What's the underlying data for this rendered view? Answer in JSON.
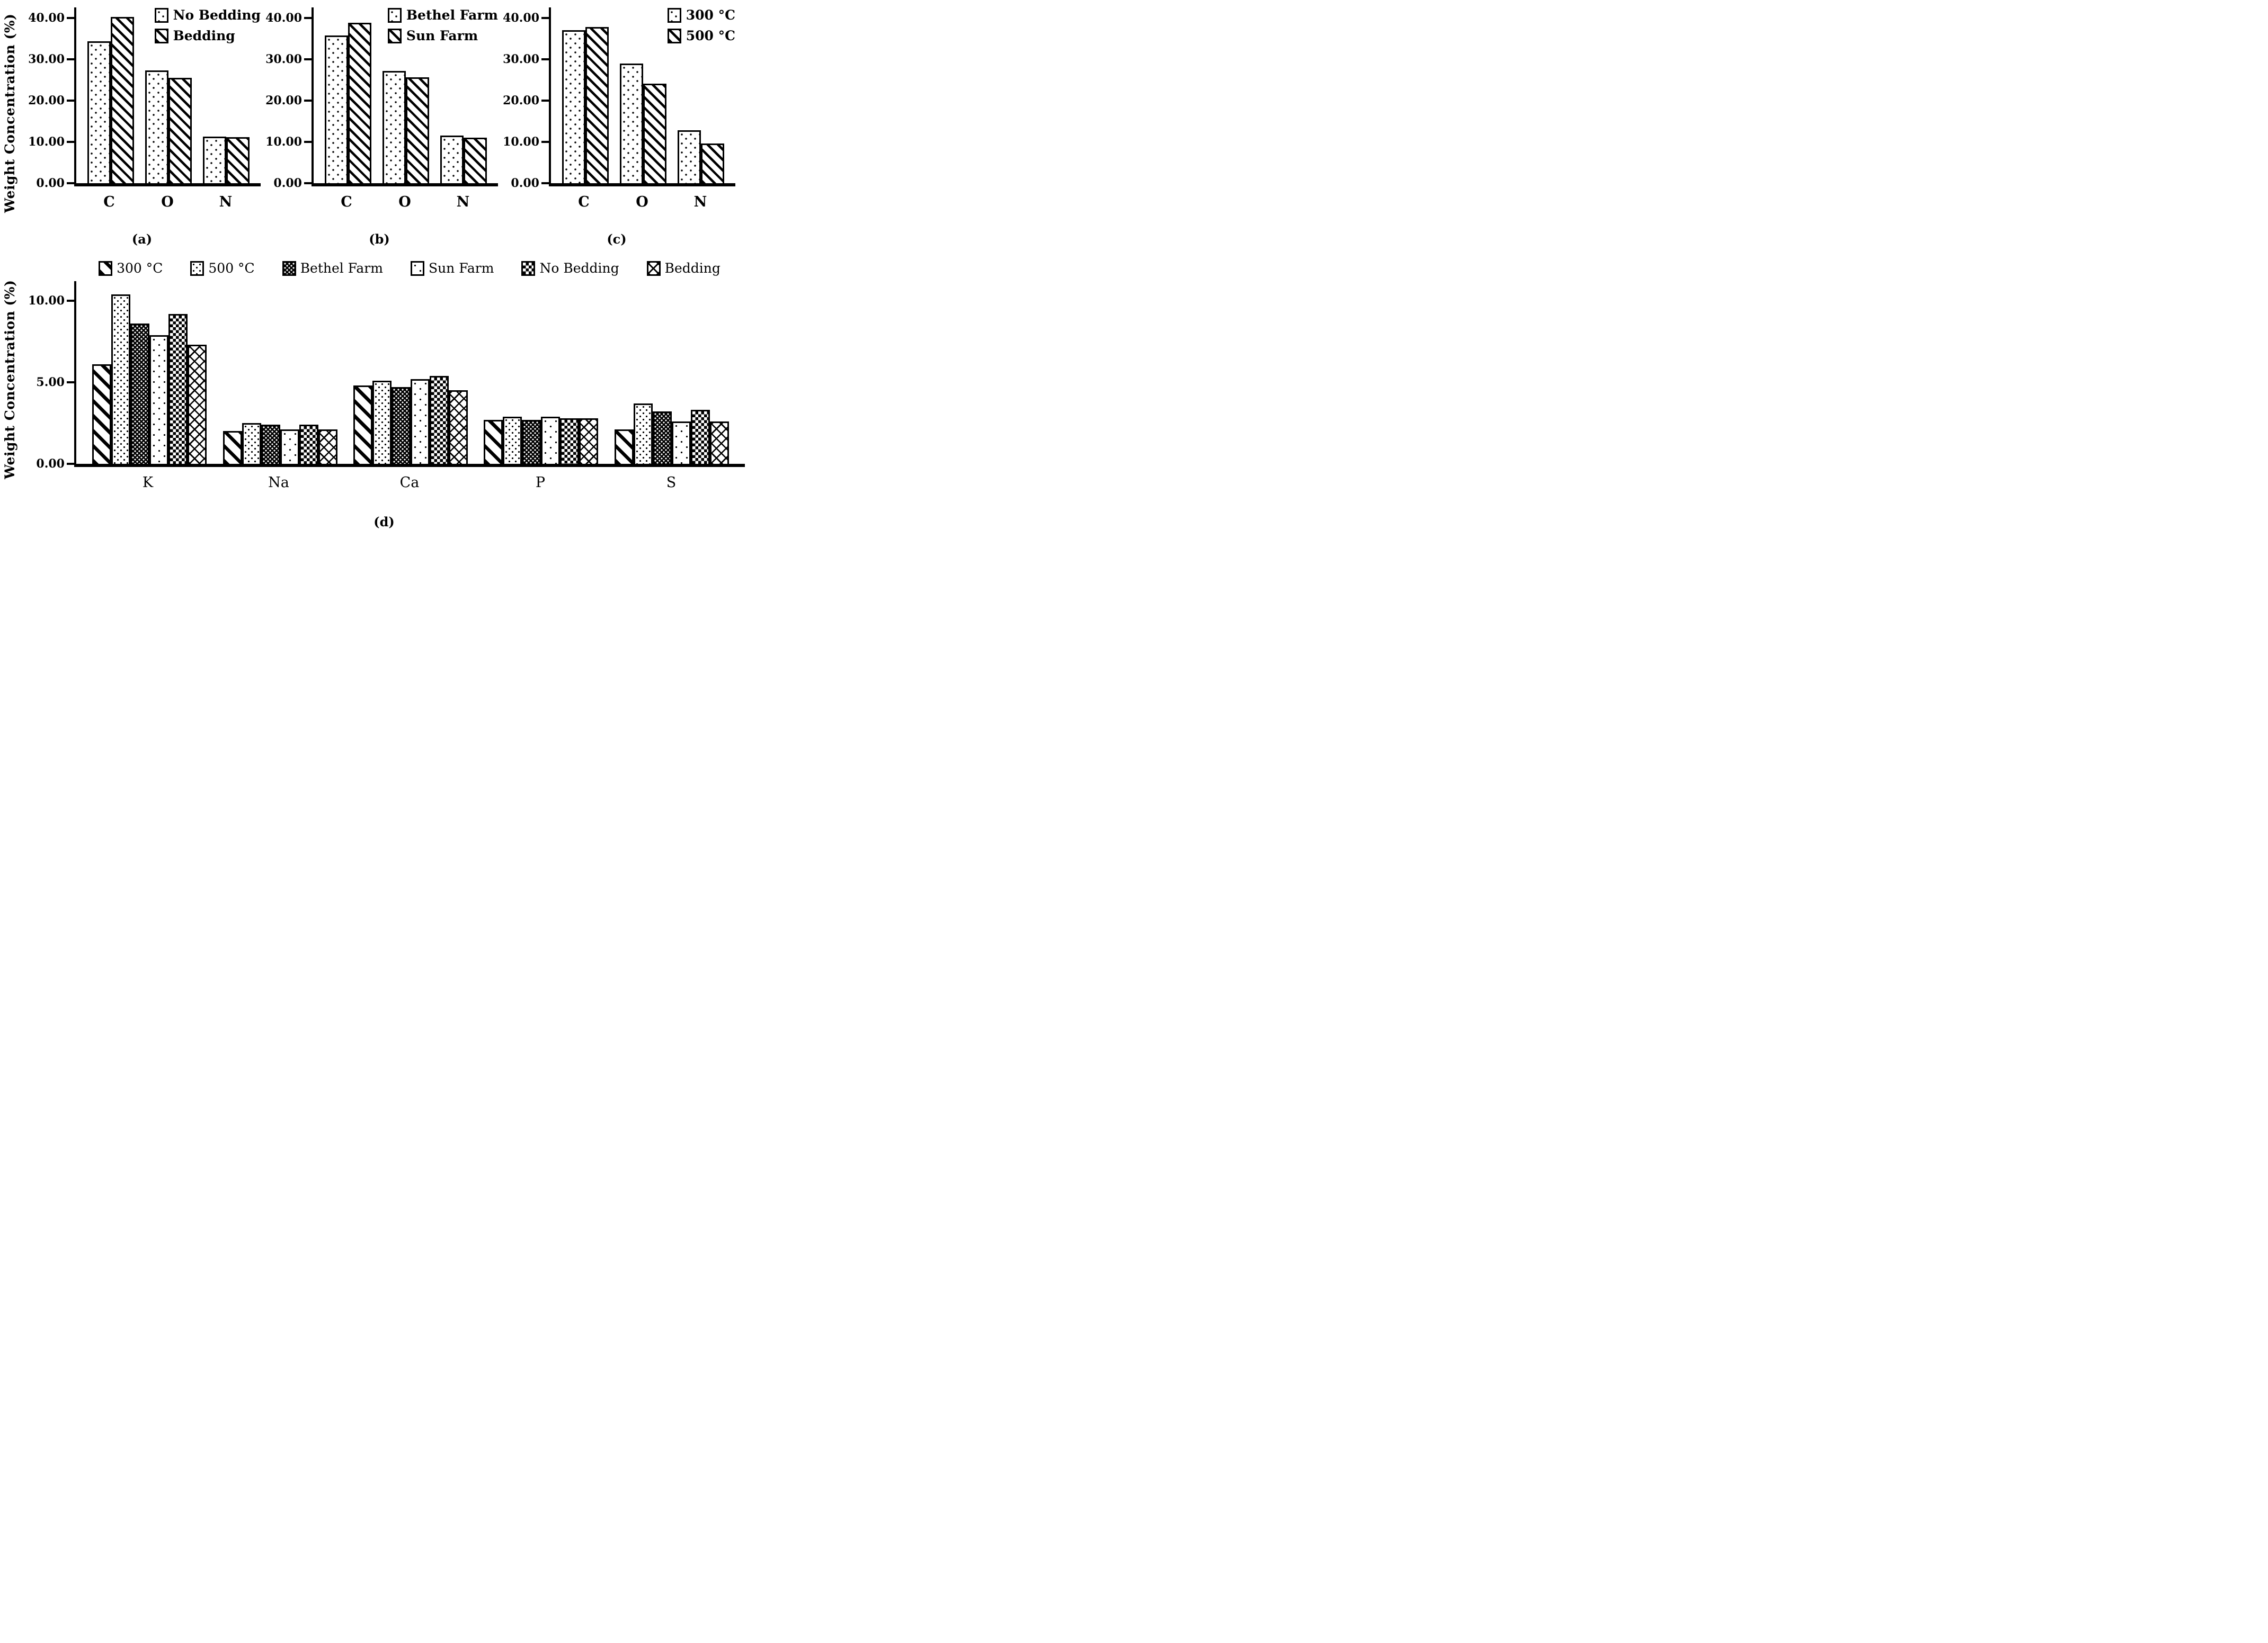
{
  "figure": {
    "y_axis_label": "Weight Concentration (%)"
  },
  "chart_data": [
    {
      "id": "a",
      "type": "bar",
      "caption": "(a)",
      "ylabel": "Weight Concentration (%)",
      "categories": [
        "C",
        "O",
        "N"
      ],
      "series": [
        {
          "name": "No Bedding",
          "pattern": "dots",
          "values": [
            34.3,
            27.3,
            11.3
          ]
        },
        {
          "name": "Bedding",
          "pattern": "diag",
          "values": [
            40.2,
            25.5,
            11.2
          ]
        }
      ],
      "ylim": [
        0,
        42.5
      ],
      "ytick_values": [
        0,
        10,
        20,
        30,
        40
      ],
      "ytick_labels": [
        "0.00",
        "10.00",
        "20.00",
        "30.00",
        "40.00"
      ],
      "legend_position": "top-right",
      "grid": "off"
    },
    {
      "id": "b",
      "type": "bar",
      "caption": "(b)",
      "ylabel": "Weight Concentration (%)",
      "categories": [
        "C",
        "O",
        "N"
      ],
      "series": [
        {
          "name": "Bethel Farm",
          "pattern": "dots",
          "values": [
            35.7,
            27.2,
            11.5
          ]
        },
        {
          "name": "Sun Farm",
          "pattern": "diag",
          "values": [
            38.8,
            25.6,
            11.0
          ]
        }
      ],
      "ylim": [
        0,
        42.5
      ],
      "ytick_values": [
        0,
        10,
        20,
        30,
        40
      ],
      "ytick_labels": [
        "0.00",
        "10.00",
        "20.00",
        "30.00",
        "40.00"
      ],
      "legend_position": "top-right",
      "grid": "off"
    },
    {
      "id": "c",
      "type": "bar",
      "caption": "(c)",
      "ylabel": "Weight Concentration (%)",
      "categories": [
        "C",
        "O",
        "N"
      ],
      "series": [
        {
          "name": "300 °C",
          "pattern": "dots",
          "values": [
            37.0,
            28.9,
            12.8
          ]
        },
        {
          "name": "500 °C",
          "pattern": "diag",
          "values": [
            37.7,
            24.1,
            9.6
          ]
        }
      ],
      "ylim": [
        0,
        42.5
      ],
      "ytick_values": [
        0,
        10,
        20,
        30,
        40
      ],
      "ytick_labels": [
        "0.00",
        "10.00",
        "20.00",
        "30.00",
        "40.00"
      ],
      "legend_position": "top-right",
      "grid": "off"
    },
    {
      "id": "d",
      "type": "bar",
      "caption": "(d)",
      "ylabel": "Weight Concentration (%)",
      "categories": [
        "K",
        "Na",
        "Ca",
        "P",
        "S"
      ],
      "series": [
        {
          "name": "300 °C",
          "pattern": "diag-wide",
          "values": [
            6.1,
            2.0,
            4.8,
            2.7,
            2.1
          ]
        },
        {
          "name": "500 °C",
          "pattern": "dots-med",
          "values": [
            10.4,
            2.5,
            5.1,
            2.9,
            3.7
          ]
        },
        {
          "name": "Bethel Farm",
          "pattern": "dark-dots",
          "values": [
            8.6,
            2.4,
            4.7,
            2.7,
            3.2
          ]
        },
        {
          "name": "Sun Farm",
          "pattern": "dots-sparse",
          "values": [
            7.9,
            2.1,
            5.2,
            2.9,
            2.6
          ]
        },
        {
          "name": "No Bedding",
          "pattern": "checker",
          "values": [
            9.2,
            2.4,
            5.4,
            2.8,
            3.3
          ]
        },
        {
          "name": "Bedding",
          "pattern": "diamond",
          "values": [
            7.3,
            2.1,
            4.5,
            2.8,
            2.6
          ]
        }
      ],
      "ylim": [
        0,
        11.2
      ],
      "ytick_values": [
        0,
        5,
        10
      ],
      "ytick_labels": [
        "0.00",
        "5.00",
        "10.00"
      ],
      "legend_position": "top",
      "grid": "off"
    }
  ]
}
